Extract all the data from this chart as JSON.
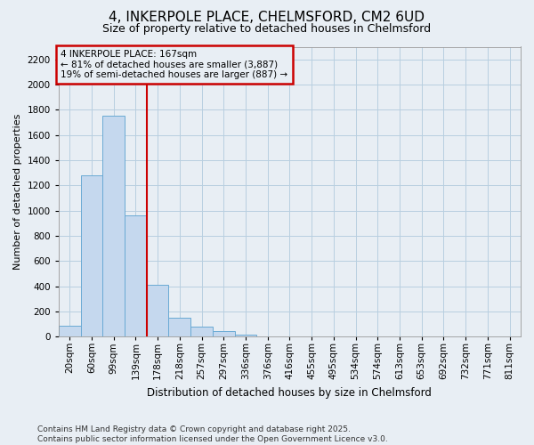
{
  "title": "4, INKERPOLE PLACE, CHELMSFORD, CM2 6UD",
  "subtitle": "Size of property relative to detached houses in Chelmsford",
  "xlabel": "Distribution of detached houses by size in Chelmsford",
  "ylabel": "Number of detached properties",
  "background_color": "#e8eef4",
  "plot_bg_color": "#e8eef4",
  "bar_color": "#c5d8ee",
  "bar_edge_color": "#6aaad4",
  "bins": [
    "20sqm",
    "60sqm",
    "99sqm",
    "139sqm",
    "178sqm",
    "218sqm",
    "257sqm",
    "297sqm",
    "336sqm",
    "376sqm",
    "416sqm",
    "455sqm",
    "495sqm",
    "534sqm",
    "574sqm",
    "613sqm",
    "653sqm",
    "692sqm",
    "732sqm",
    "771sqm",
    "811sqm"
  ],
  "values": [
    90,
    1280,
    1750,
    960,
    415,
    150,
    80,
    45,
    15,
    0,
    0,
    0,
    0,
    0,
    0,
    0,
    0,
    0,
    0,
    0,
    0
  ],
  "ylim": [
    0,
    2300
  ],
  "yticks": [
    0,
    200,
    400,
    600,
    800,
    1000,
    1200,
    1400,
    1600,
    1800,
    2000,
    2200
  ],
  "vline_x": 3.5,
  "marker_label": "4 INKERPOLE PLACE: 167sqm",
  "annotation_line1": "← 81% of detached houses are smaller (3,887)",
  "annotation_line2": "19% of semi-detached houses are larger (887) →",
  "footer_line1": "Contains HM Land Registry data © Crown copyright and database right 2025.",
  "footer_line2": "Contains public sector information licensed under the Open Government Licence v3.0.",
  "grid_color": "#b8cfe0",
  "annotation_box_color": "#cc0000",
  "vline_color": "#cc0000",
  "title_fontsize": 11,
  "subtitle_fontsize": 9,
  "ylabel_fontsize": 8,
  "xlabel_fontsize": 8.5,
  "tick_fontsize": 7.5,
  "annot_fontsize": 7.5,
  "footer_fontsize": 6.5
}
